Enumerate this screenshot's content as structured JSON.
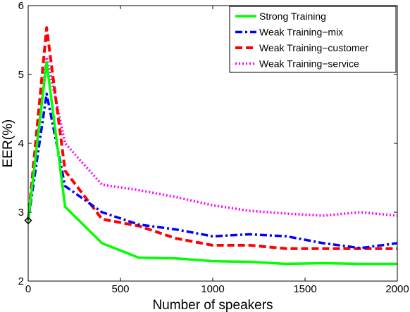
{
  "chart_data": {
    "type": "line",
    "title": "",
    "xlabel": "Number of speakers",
    "ylabel": "EER(%)",
    "xlim": [
      0,
      2000
    ],
    "ylim": [
      2,
      6
    ],
    "xticks": [
      0,
      500,
      1000,
      1500,
      2000
    ],
    "yticks": [
      2,
      3,
      4,
      5,
      6
    ],
    "grid": false,
    "legend_position": "top-right",
    "marker": {
      "x": 0,
      "y": 2.88,
      "shape": "diamond",
      "color": "#000000"
    },
    "series": [
      {
        "name": "Strong Training",
        "color": "#00ff00",
        "style": "solid",
        "x": [
          0,
          100,
          200,
          400,
          600,
          800,
          1000,
          1200,
          1400,
          1600,
          1800,
          2000
        ],
        "y": [
          2.88,
          5.18,
          3.08,
          2.55,
          2.34,
          2.33,
          2.29,
          2.28,
          2.25,
          2.26,
          2.25,
          2.25
        ]
      },
      {
        "name": "Weak Training−mix",
        "color": "#0000ff",
        "style": "dashdot",
        "x": [
          0,
          100,
          200,
          400,
          600,
          800,
          1000,
          1200,
          1400,
          1600,
          1800,
          2000
        ],
        "y": [
          2.88,
          4.72,
          3.38,
          3.0,
          2.82,
          2.75,
          2.65,
          2.68,
          2.65,
          2.55,
          2.48,
          2.55
        ]
      },
      {
        "name": "Weak Training−customer",
        "color": "#ff0000",
        "style": "dashed",
        "x": [
          0,
          100,
          200,
          400,
          600,
          800,
          1000,
          1200,
          1400,
          1600,
          1800,
          2000
        ],
        "y": [
          2.88,
          5.68,
          3.6,
          2.9,
          2.8,
          2.62,
          2.52,
          2.52,
          2.47,
          2.47,
          2.47,
          2.47
        ]
      },
      {
        "name": "Weak Training−service",
        "color": "#ff00ff",
        "style": "dotted",
        "x": [
          0,
          100,
          200,
          400,
          600,
          800,
          1000,
          1200,
          1400,
          1600,
          1800,
          2000
        ],
        "y": [
          2.88,
          5.25,
          4.0,
          3.4,
          3.32,
          3.22,
          3.1,
          3.02,
          2.98,
          2.95,
          3.0,
          2.95
        ]
      }
    ]
  }
}
